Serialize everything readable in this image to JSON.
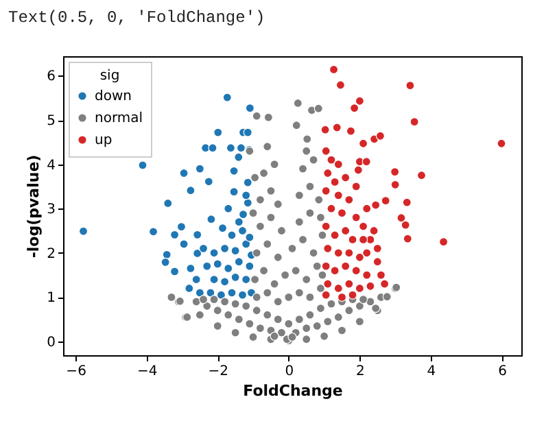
{
  "chart_data": {
    "type": "scatter",
    "annotations": [
      "Text(0.5, 0, 'FoldChange')"
    ],
    "xlabel": "FoldChange",
    "ylabel": "-log(pvalue)",
    "legend_title": "sig",
    "legend": "top left",
    "marker": "circle",
    "grid": false,
    "xlim": [
      -6.35,
      6.55
    ],
    "ylim": [
      -0.31,
      6.44
    ],
    "xticks": [
      -6,
      -4,
      -2,
      0,
      2,
      4,
      6
    ],
    "yticks": [
      0,
      1,
      2,
      3,
      4,
      5,
      6
    ],
    "series": [
      {
        "name": "down",
        "color": "#1f77b4",
        "x": [
          -5.78,
          -4.11,
          -3.81,
          -1.73,
          -1.09,
          -1.99,
          -1.28,
          -1.15,
          -2.34,
          -2.14,
          -1.63,
          -1.34,
          -1.11,
          -2.95,
          -2.5,
          -3.4,
          -2.76,
          -2.25,
          -1.54,
          -3.02,
          -3.21,
          -3.43,
          -3.47,
          -3.21,
          -2.76,
          -2.95,
          -2.57,
          -2.18,
          -1.86,
          -2.57,
          -1.54,
          -1.15,
          -1.28,
          -1.15,
          -1.41,
          -2.2,
          -1.9,
          -1.6,
          -1.3,
          -1.05,
          -2.1,
          -1.8,
          -1.5,
          -1.2,
          -2.3,
          -2.0,
          -1.7,
          -1.4,
          -1.1,
          -2.4,
          -2.1,
          -1.8,
          -1.5,
          -1.2,
          -1.05,
          -1.6,
          -1.3,
          -1.1,
          -2.6,
          -2.8,
          -2.5,
          -1.4,
          -1.7,
          -1.2
        ],
        "values": [
          2.49,
          3.98,
          2.48,
          5.51,
          5.27,
          4.72,
          4.72,
          4.72,
          4.37,
          4.37,
          4.37,
          4.37,
          4.33,
          3.8,
          3.9,
          3.12,
          3.41,
          3.61,
          3.85,
          2.59,
          2.41,
          1.96,
          1.79,
          1.58,
          1.65,
          2.2,
          1.99,
          2.76,
          2.56,
          2.41,
          3.38,
          3.13,
          2.87,
          3.59,
          4.16,
          1.1,
          1.05,
          1.1,
          1.05,
          1.1,
          1.4,
          1.35,
          1.45,
          1.4,
          1.7,
          1.75,
          1.65,
          1.8,
          1.7,
          2.1,
          2.0,
          2.1,
          2.05,
          2.2,
          1.95,
          2.4,
          2.5,
          2.35,
          1.4,
          1.2,
          1.1,
          2.7,
          3.0,
          3.3
        ]
      },
      {
        "name": "normal",
        "color": "#7f7f7f",
        "x": [
          -2.5,
          -2,
          -1.5,
          -1,
          -0.5,
          0,
          0.5,
          1,
          1.5,
          2,
          2.5,
          3.0,
          -3.3,
          -3.1,
          -2.9,
          -2.6,
          -2.3,
          -2.0,
          -1.7,
          -1.4,
          -1.1,
          -0.8,
          -0.5,
          -0.2,
          0.2,
          0.5,
          0.8,
          1.1,
          1.4,
          1.7,
          2.0,
          2.3,
          2.6,
          -2.4,
          -2.1,
          -1.8,
          -1.5,
          -1.2,
          -0.9,
          -0.6,
          -0.3,
          0,
          0.3,
          0.6,
          0.9,
          1.2,
          1.5,
          1.8,
          2.1,
          -0.9,
          -0.6,
          -0.3,
          0,
          0.3,
          0.6,
          0.9,
          -0.95,
          -0.7,
          -0.4,
          -0.1,
          0.2,
          0.5,
          0.8,
          0.95,
          -0.9,
          -0.6,
          -0.3,
          0.1,
          0.4,
          0.7,
          0.95,
          -0.8,
          -0.5,
          -0.2,
          0.3,
          0.6,
          0.9,
          -0.8,
          -0.5,
          -0.3,
          0.3,
          0.6,
          0.85,
          -0.7,
          -0.4,
          0.4,
          0.7,
          0.5,
          -0.6,
          0.52,
          0.22,
          0.26,
          0.65,
          0.84,
          -0.57,
          -0.9,
          -1.1,
          -0.95,
          -1.0,
          -3.06,
          -2.86,
          3.03,
          2.77,
          2.45,
          -0.05,
          0.1,
          -0.4
        ],
        "values": [
          0.6,
          0.35,
          0.2,
          0.1,
          0.05,
          0.02,
          0.05,
          0.12,
          0.25,
          0.45,
          0.7,
          1.2,
          1.0,
          0.9,
          0.55,
          0.9,
          0.8,
          0.7,
          0.6,
          0.5,
          0.4,
          0.3,
          0.25,
          0.2,
          0.2,
          0.3,
          0.35,
          0.45,
          0.55,
          0.7,
          0.8,
          0.9,
          1.0,
          0.95,
          0.95,
          0.9,
          0.85,
          0.8,
          0.7,
          0.6,
          0.5,
          0.4,
          0.5,
          0.6,
          0.75,
          0.85,
          0.9,
          0.95,
          0.95,
          1.0,
          1.1,
          0.9,
          1.0,
          1.1,
          1.0,
          1.2,
          1.4,
          1.6,
          1.3,
          1.5,
          1.6,
          1.4,
          1.7,
          1.5,
          2.0,
          2.2,
          1.9,
          2.1,
          2.3,
          2.0,
          2.4,
          2.6,
          2.8,
          2.5,
          2.7,
          2.9,
          2.8,
          3.2,
          3.4,
          3.1,
          3.3,
          3.5,
          3.2,
          3.8,
          4.0,
          3.9,
          4.1,
          4.3,
          4.4,
          4.57,
          4.88,
          5.38,
          5.22,
          5.26,
          5.06,
          5.09,
          4.3,
          3.7,
          2.9,
          0.91,
          0.55,
          1.22,
          1.01,
          0.75,
          0.05,
          0.1,
          0.12
        ]
      },
      {
        "name": "up",
        "color": "#d62728",
        "x": [
          1.27,
          1.46,
          3.42,
          2.0,
          1.85,
          3.54,
          5.99,
          1.03,
          1.36,
          1.75,
          2.1,
          2.41,
          2.58,
          2.99,
          3.74,
          3.0,
          3.33,
          2.73,
          2.45,
          3.17,
          3.29,
          3.35,
          4.36,
          2.0,
          2.19,
          1.96,
          1.05,
          1.2,
          1.4,
          1.1,
          1.3,
          1.6,
          1.05,
          1.4,
          1.7,
          1.2,
          1.5,
          1.9,
          2.1,
          1.05,
          1.3,
          1.6,
          1.8,
          2.3,
          2.5,
          1.1,
          1.4,
          1.7,
          2.0,
          2.2,
          2.5,
          1.05,
          1.3,
          1.6,
          1.9,
          2.2,
          2.6,
          1.1,
          1.4,
          1.7,
          2.0,
          2.3,
          2.7,
          1.05,
          1.5,
          1.8,
          2.1,
          2.4,
          1.9,
          2.2
        ],
        "values": [
          6.14,
          5.79,
          5.78,
          5.43,
          5.27,
          4.96,
          4.47,
          4.78,
          4.83,
          4.75,
          4.47,
          4.57,
          4.64,
          3.83,
          3.75,
          3.54,
          3.14,
          3.18,
          3.08,
          2.79,
          2.63,
          2.32,
          2.25,
          4.06,
          4.06,
          3.87,
          4.3,
          4.1,
          4.0,
          3.8,
          3.6,
          3.7,
          3.4,
          3.3,
          3.2,
          3.0,
          2.9,
          2.8,
          2.6,
          2.6,
          2.4,
          2.5,
          2.3,
          2.3,
          2.1,
          2.1,
          2.0,
          2.0,
          1.9,
          2.0,
          1.8,
          1.7,
          1.6,
          1.7,
          1.6,
          1.5,
          1.5,
          1.3,
          1.2,
          1.3,
          1.2,
          1.25,
          1.3,
          1.05,
          1.0,
          1.05,
          2.3,
          2.5,
          3.5,
          3.0
        ]
      }
    ]
  }
}
